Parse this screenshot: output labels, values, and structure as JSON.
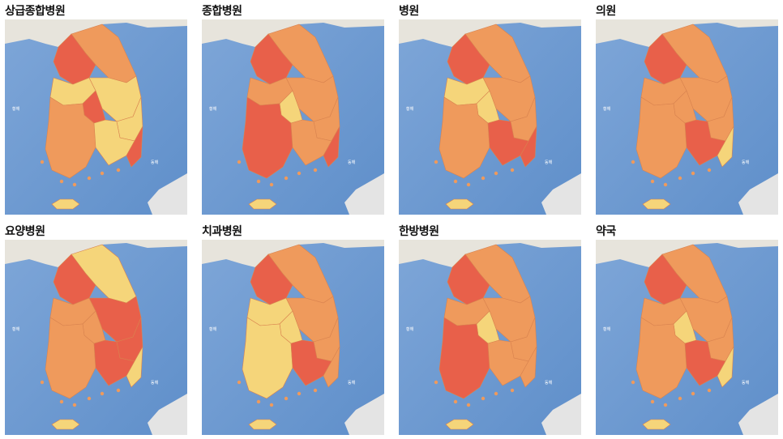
{
  "panels": [
    {
      "title": "상급종합병원",
      "regions": {
        "seoul": "red",
        "gangwon": "orange",
        "north_central": "light",
        "south_central": "light",
        "daejeon": "red",
        "honam": "orange",
        "yeongnam": "light",
        "busan": "red",
        "gyeongbuk": "light",
        "jeju": "light"
      }
    },
    {
      "title": "종합병원",
      "regions": {
        "seoul": "red",
        "gangwon": "orange",
        "north_central": "orange",
        "south_central": "orange",
        "daejeon": "light",
        "honam": "red",
        "yeongnam": "orange",
        "busan": "red",
        "gyeongbuk": "orange",
        "jeju": "light"
      }
    },
    {
      "title": "병원",
      "regions": {
        "seoul": "red",
        "gangwon": "orange",
        "north_central": "light",
        "south_central": "orange",
        "daejeon": "light",
        "honam": "orange",
        "yeongnam": "red",
        "busan": "red",
        "gyeongbuk": "orange",
        "jeju": "light"
      }
    },
    {
      "title": "의원",
      "regions": {
        "seoul": "red",
        "gangwon": "orange",
        "north_central": "orange",
        "south_central": "orange",
        "daejeon": "orange",
        "honam": "orange",
        "yeongnam": "red",
        "busan": "light",
        "gyeongbuk": "orange",
        "jeju": "light"
      }
    },
    {
      "title": "요양병원",
      "regions": {
        "seoul": "red",
        "gangwon": "light",
        "north_central": "orange",
        "south_central": "red",
        "daejeon": "orange",
        "honam": "orange",
        "yeongnam": "red",
        "busan": "light",
        "gyeongbuk": "red",
        "jeju": "light"
      }
    },
    {
      "title": "치과병원",
      "regions": {
        "seoul": "red",
        "gangwon": "orange",
        "north_central": "light",
        "south_central": "orange",
        "daejeon": "light",
        "honam": "light",
        "yeongnam": "red",
        "busan": "orange",
        "gyeongbuk": "orange",
        "jeju": "light"
      }
    },
    {
      "title": "한방병원",
      "regions": {
        "seoul": "red",
        "gangwon": "orange",
        "north_central": "orange",
        "south_central": "orange",
        "daejeon": "light",
        "honam": "red",
        "yeongnam": "orange",
        "busan": "orange",
        "gyeongbuk": "orange",
        "jeju": "light"
      }
    },
    {
      "title": "약국",
      "regions": {
        "seoul": "red",
        "gangwon": "orange",
        "north_central": "orange",
        "south_central": "orange",
        "daejeon": "light",
        "honam": "orange",
        "yeongnam": "red",
        "busan": "light",
        "gyeongbuk": "orange",
        "jeju": "light"
      }
    }
  ],
  "legend_colors": {
    "red": "#e8604a",
    "orange": "#ef9a5c",
    "light": "#f5d57a"
  },
  "sea_labels": [
    "황해",
    "동해"
  ]
}
